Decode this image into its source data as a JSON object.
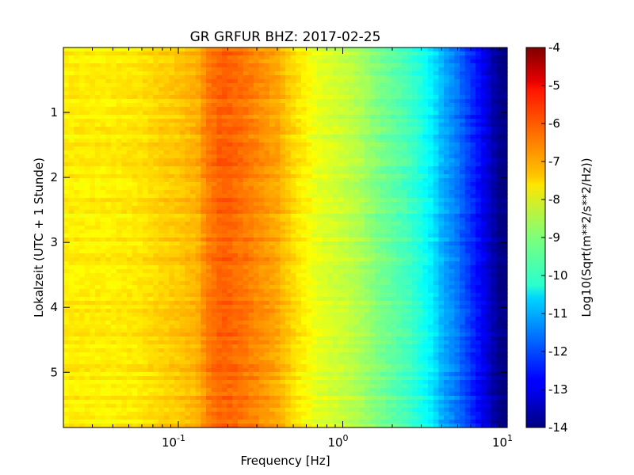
{
  "chart_data": {
    "type": "heatmap",
    "title": "GR GRFUR BHZ: 2017-02-25",
    "xlabel": "Frequency [Hz]",
    "ylabel": "Lokalzeit (UTC + 1 Stunde)",
    "xscale": "log",
    "xlim": [
      0.02,
      10
    ],
    "ylim": [
      5.85,
      0
    ],
    "x_ticks": [
      {
        "value": 0.1,
        "base": "10",
        "exp": "-1"
      },
      {
        "value": 1,
        "base": "10",
        "exp": "0"
      },
      {
        "value": 10,
        "base": "10",
        "exp": "1"
      }
    ],
    "y_ticks": [
      {
        "value": 1,
        "label": "1"
      },
      {
        "value": 2,
        "label": "2"
      },
      {
        "value": 3,
        "label": "3"
      },
      {
        "value": 4,
        "label": "4"
      },
      {
        "value": 5,
        "label": "5"
      }
    ],
    "colorbar": {
      "label": "Log10(Sqrt(m**2/s**2/Hz))",
      "range": [
        -14,
        -4
      ],
      "colormap": "jet",
      "ticks": [
        {
          "value": -4,
          "label": "-4"
        },
        {
          "value": -5,
          "label": "-5"
        },
        {
          "value": -6,
          "label": "-6"
        },
        {
          "value": -7,
          "label": "-7"
        },
        {
          "value": -8,
          "label": "-8"
        },
        {
          "value": -9,
          "label": "-9"
        },
        {
          "value": -10,
          "label": "-10"
        },
        {
          "value": -11,
          "label": "-11"
        },
        {
          "value": -12,
          "label": "-12"
        },
        {
          "value": -13,
          "label": "-13"
        },
        {
          "value": -14,
          "label": "-14"
        }
      ]
    },
    "spectrum_profile": {
      "frequency_hz": [
        0.02,
        0.03,
        0.04,
        0.06,
        0.08,
        0.1,
        0.13,
        0.15,
        0.18,
        0.2,
        0.25,
        0.3,
        0.4,
        0.5,
        0.6,
        0.7,
        0.8,
        1.0,
        1.3,
        1.6,
        2.0,
        2.5,
        3.0,
        3.5,
        4.0,
        5.0,
        6.0,
        7.0,
        8.0,
        9.0,
        10.0
      ],
      "psd_log10": [
        -7.6,
        -7.6,
        -7.6,
        -7.5,
        -7.3,
        -7.2,
        -7.0,
        -6.5,
        -6.2,
        -6.2,
        -6.4,
        -6.6,
        -6.9,
        -7.4,
        -7.7,
        -8.0,
        -8.1,
        -8.3,
        -8.6,
        -9.0,
        -9.3,
        -9.6,
        -10.0,
        -10.4,
        -11.0,
        -11.6,
        -12.3,
        -12.8,
        -13.4,
        -13.9,
        -14.0
      ]
    }
  }
}
